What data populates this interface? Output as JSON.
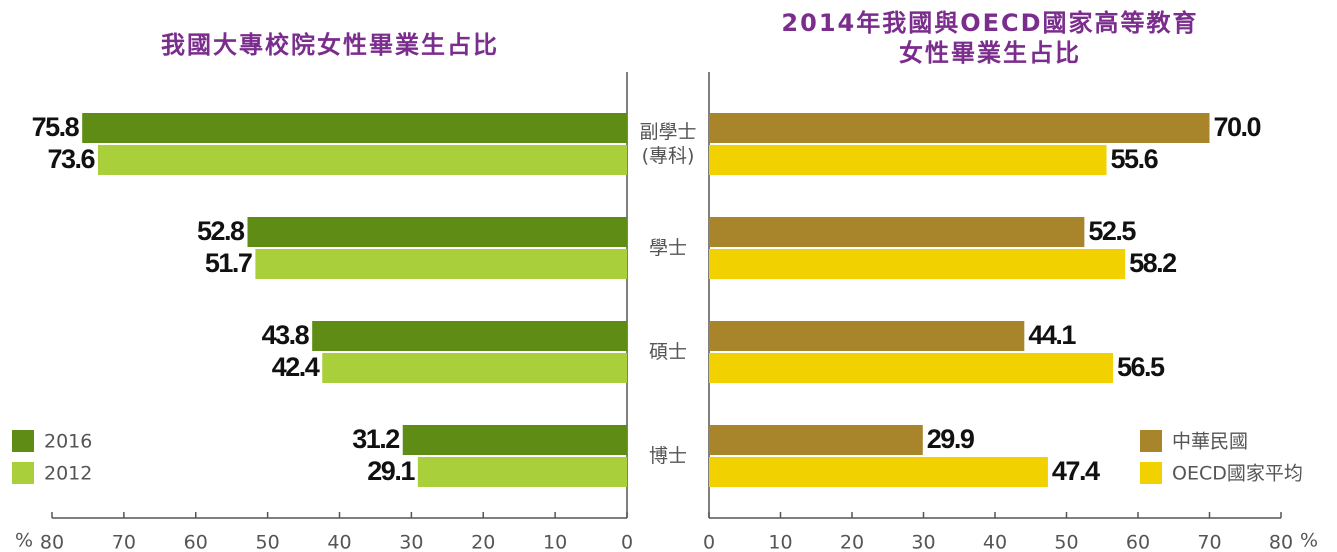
{
  "chart_data": [
    {
      "type": "bar",
      "orientation": "horizontal",
      "x_reversed": true,
      "title": "我國大專校院女性畢業生占比",
      "categories": [
        "副學士\n(專科)",
        "學士",
        "碩士",
        "博士"
      ],
      "series": [
        {
          "name": "2016",
          "color": "#5e8c14",
          "values": [
            75.8,
            52.8,
            43.8,
            31.2
          ]
        },
        {
          "name": "2012",
          "color": "#a9cf3b",
          "values": [
            73.6,
            51.7,
            42.4,
            29.1
          ]
        }
      ],
      "xlim": [
        0,
        80
      ],
      "xticks": [
        0,
        10,
        20,
        30,
        40,
        50,
        60,
        70,
        80
      ],
      "x_unit": "%",
      "legend": "lower left"
    },
    {
      "type": "bar",
      "orientation": "horizontal",
      "x_reversed": false,
      "title": "2014年我國與OECD國家高等教育\n女性畢業生占比",
      "series": [
        {
          "name": "中華民國",
          "color": "#a8842a",
          "values": [
            70,
            52.5,
            44.1,
            29.9
          ],
          "value_labels": [
            "70.0",
            "52.5",
            "44.1",
            "29.9"
          ]
        },
        {
          "name": "OECD國家平均",
          "color": "#f2d100",
          "values": [
            55.6,
            58.2,
            56.5,
            47.4
          ]
        }
      ],
      "xlim": [
        0,
        80
      ],
      "xticks": [
        0,
        10,
        20,
        30,
        40,
        50,
        60,
        70,
        80
      ],
      "x_unit": "%",
      "legend": "lower right"
    }
  ]
}
